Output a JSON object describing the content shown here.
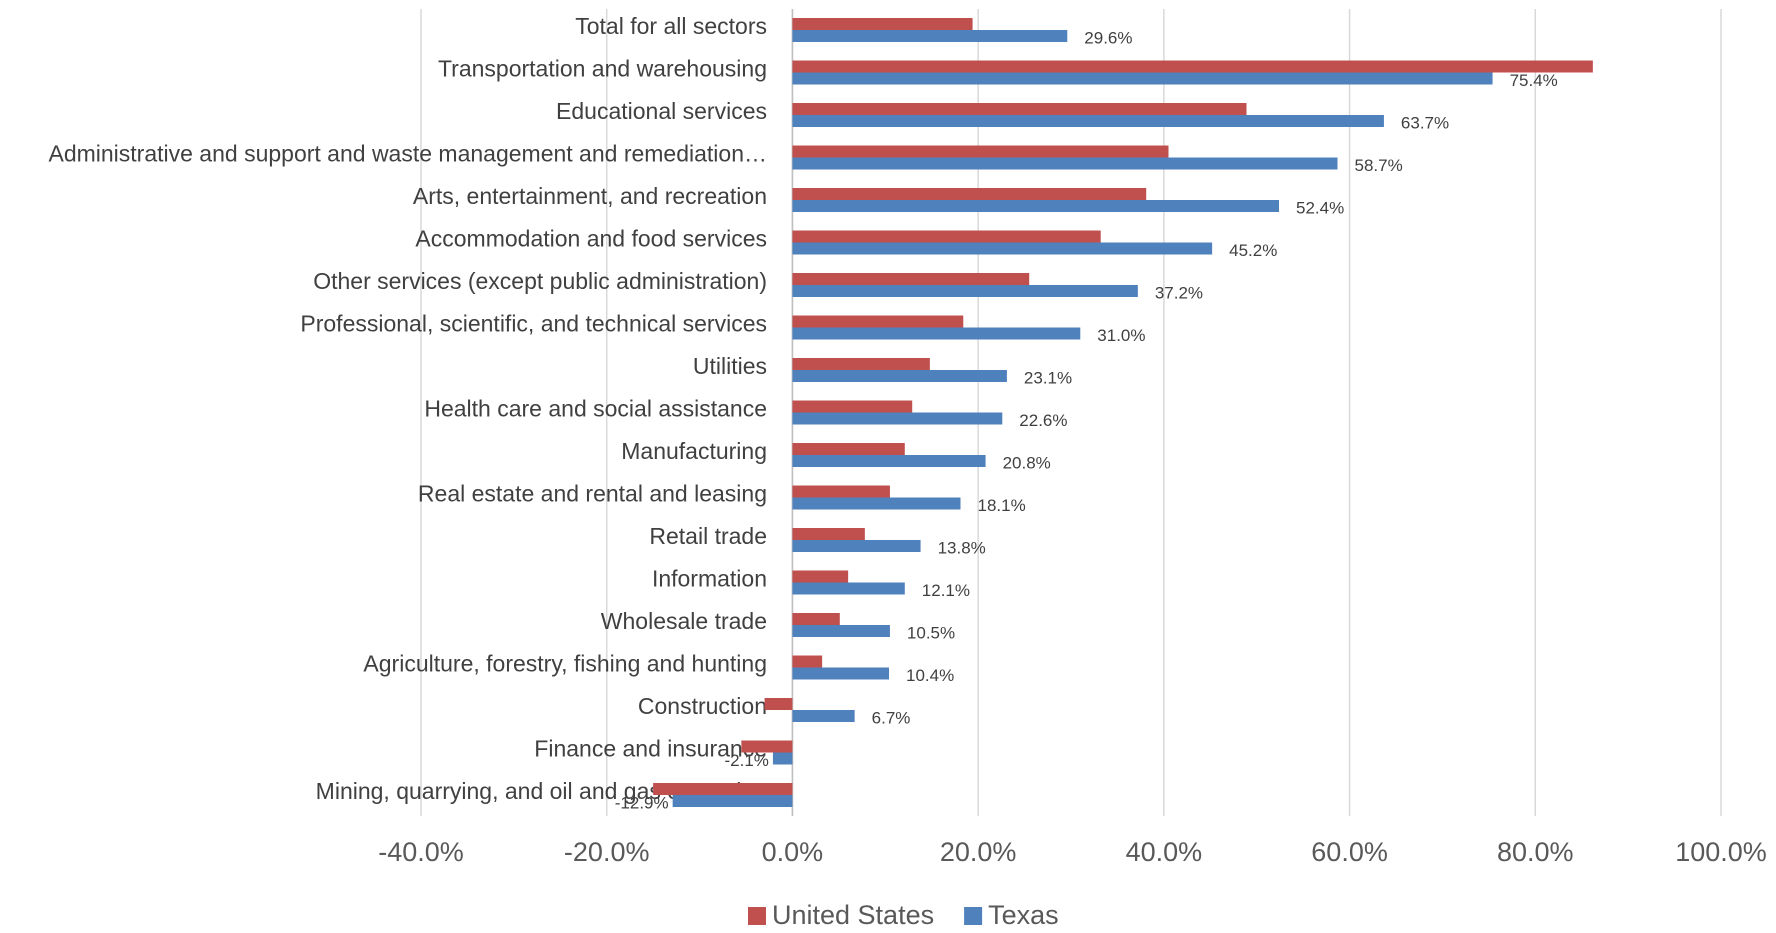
{
  "chart_data": {
    "type": "bar",
    "orientation": "horizontal",
    "categories": [
      "Total for all sectors",
      "Transportation and warehousing",
      "Educational services",
      "Administrative and support and waste management and remediation…",
      "Arts, entertainment, and recreation",
      "Accommodation and food services",
      "Other services (except public administration)",
      "Professional, scientific, and technical services",
      "Utilities",
      "Health care and social assistance",
      "Manufacturing",
      "Real estate and rental and leasing",
      "Retail trade",
      "Information",
      "Wholesale trade",
      "Agriculture, forestry, fishing and hunting",
      "Construction",
      "Finance and insurance",
      "Mining, quarrying, and oil and gas extraction"
    ],
    "series": [
      {
        "name": "United States",
        "color": "#c0504d",
        "values": [
          19.4,
          86.2,
          48.9,
          40.5,
          38.1,
          33.2,
          25.5,
          18.4,
          14.8,
          12.9,
          12.1,
          10.5,
          7.8,
          6.0,
          5.1,
          3.2,
          -3.0,
          -5.5,
          -15.0
        ]
      },
      {
        "name": "Texas",
        "color": "#4f81bd",
        "values": [
          29.6,
          75.4,
          63.7,
          58.7,
          52.4,
          45.2,
          37.2,
          31.0,
          23.1,
          22.6,
          20.8,
          18.1,
          13.8,
          12.1,
          10.5,
          10.4,
          6.7,
          -2.1,
          -12.9
        ],
        "value_labels": [
          "29.6%",
          "75.4%",
          "63.7%",
          "58.7%",
          "52.4%",
          "45.2%",
          "37.2%",
          "31.0%",
          "23.1%",
          "22.6%",
          "20.8%",
          "18.1%",
          "13.8%",
          "12.1%",
          "10.5%",
          "10.4%",
          "6.7%",
          "-2.1%",
          "-12.9%"
        ]
      }
    ],
    "xlim": [
      -40,
      100
    ],
    "xticks": [
      {
        "value": -40,
        "label": "-40.0%"
      },
      {
        "value": -20,
        "label": "-20.0%"
      },
      {
        "value": 0,
        "label": "0.0%"
      },
      {
        "value": 20,
        "label": "20.0%"
      },
      {
        "value": 40,
        "label": "40.0%"
      },
      {
        "value": 60,
        "label": "60.0%"
      },
      {
        "value": 80,
        "label": "80.0%"
      },
      {
        "value": 100,
        "label": "100.0%"
      }
    ],
    "grid": true,
    "legend": "bottom"
  }
}
